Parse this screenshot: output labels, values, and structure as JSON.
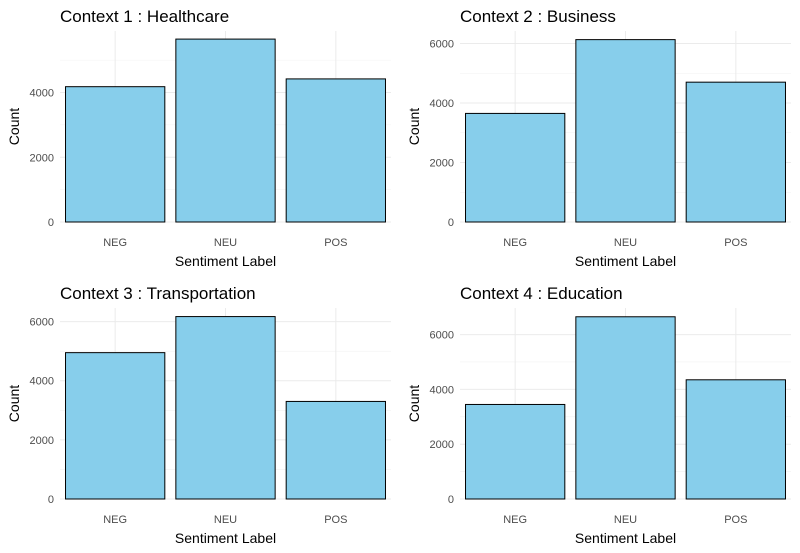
{
  "colors": {
    "bar_fill": "#87CEEB",
    "bar_outline": "#000000",
    "grid": "#ebebeb"
  },
  "chart_data": [
    {
      "type": "bar",
      "title": "Context  1 :  Healthcare",
      "xlabel": "Sentiment Label",
      "ylabel": "Count",
      "categories": [
        "NEG",
        "NEU",
        "POS"
      ],
      "values": [
        4180,
        5650,
        4420
      ],
      "ylim": [
        0,
        5900
      ],
      "yticks": [
        0,
        2000,
        4000
      ],
      "grid": true
    },
    {
      "type": "bar",
      "title": "Context  2 :  Business",
      "xlabel": "Sentiment Label",
      "ylabel": "Count",
      "categories": [
        "NEG",
        "NEU",
        "POS"
      ],
      "values": [
        3650,
        6130,
        4700
      ],
      "ylim": [
        0,
        6420
      ],
      "yticks": [
        0,
        2000,
        4000,
        6000
      ],
      "grid": true
    },
    {
      "type": "bar",
      "title": "Context  3 :  Transportation",
      "xlabel": "Sentiment Label",
      "ylabel": "Count",
      "categories": [
        "NEG",
        "NEU",
        "POS"
      ],
      "values": [
        4950,
        6170,
        3300
      ],
      "ylim": [
        0,
        6460
      ],
      "yticks": [
        0,
        2000,
        4000,
        6000
      ],
      "grid": true
    },
    {
      "type": "bar",
      "title": "Context  4 :  Education",
      "xlabel": "Sentiment Label",
      "ylabel": "Count",
      "categories": [
        "NEG",
        "NEU",
        "POS"
      ],
      "values": [
        3450,
        6650,
        4350
      ],
      "ylim": [
        0,
        6970
      ],
      "yticks": [
        0,
        2000,
        4000,
        6000
      ],
      "grid": true
    }
  ]
}
